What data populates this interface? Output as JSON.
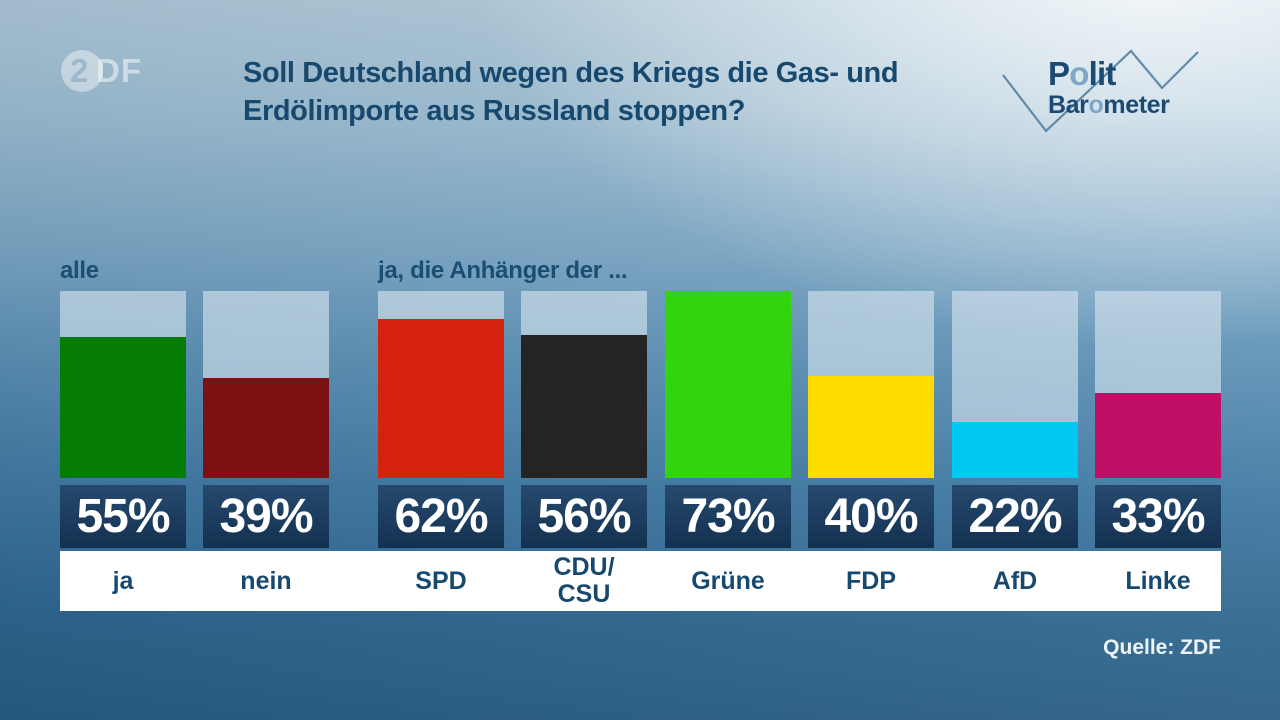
{
  "brand": {
    "zdf_logo": {
      "digit": "2",
      "letters": "DF"
    },
    "politbarometer": {
      "polit_pre": "P",
      "polit_o": "o",
      "polit_post": "lit",
      "baro_pre": "Bar",
      "baro_o": "o",
      "baro_post": "meter"
    }
  },
  "header": {
    "title_line1": "Soll Deutschland wegen des Kriegs die Gas- und",
    "title_line2": "Erdölimporte aus Russland stoppen?"
  },
  "footer": {
    "source": "Quelle: ZDF"
  },
  "colors": {
    "title_text": "#17496f",
    "category_text": "#17496f",
    "value_box": "#1d3c5e",
    "value_text": "#ffffff",
    "bar_track": "#a9c2d4",
    "strip_bg": "#ffffff",
    "logo_accent": "#7ea6c7"
  },
  "chart_data": {
    "type": "bar",
    "unit": "%",
    "ymax_display": 73,
    "grid": false,
    "legend": "none",
    "groups": [
      {
        "label": "alle",
        "bars": [
          {
            "label": "ja",
            "value": 55,
            "color": "#057d05"
          },
          {
            "label": "nein",
            "value": 39,
            "color": "#7d1013"
          }
        ]
      },
      {
        "label": "ja, die Anhänger der ...",
        "bars": [
          {
            "label": "SPD",
            "value": 62,
            "color": "#d4220e"
          },
          {
            "label": "CDU/\nCSU",
            "value": 56,
            "color": "#242424"
          },
          {
            "label": "Grüne",
            "value": 73,
            "color": "#32d30f"
          },
          {
            "label": "FDP",
            "value": 40,
            "color": "#ffdc00"
          },
          {
            "label": "AfD",
            "value": 22,
            "color": "#00c9f2"
          },
          {
            "label": "Linke",
            "value": 33,
            "color": "#bf1066"
          }
        ]
      }
    ]
  }
}
